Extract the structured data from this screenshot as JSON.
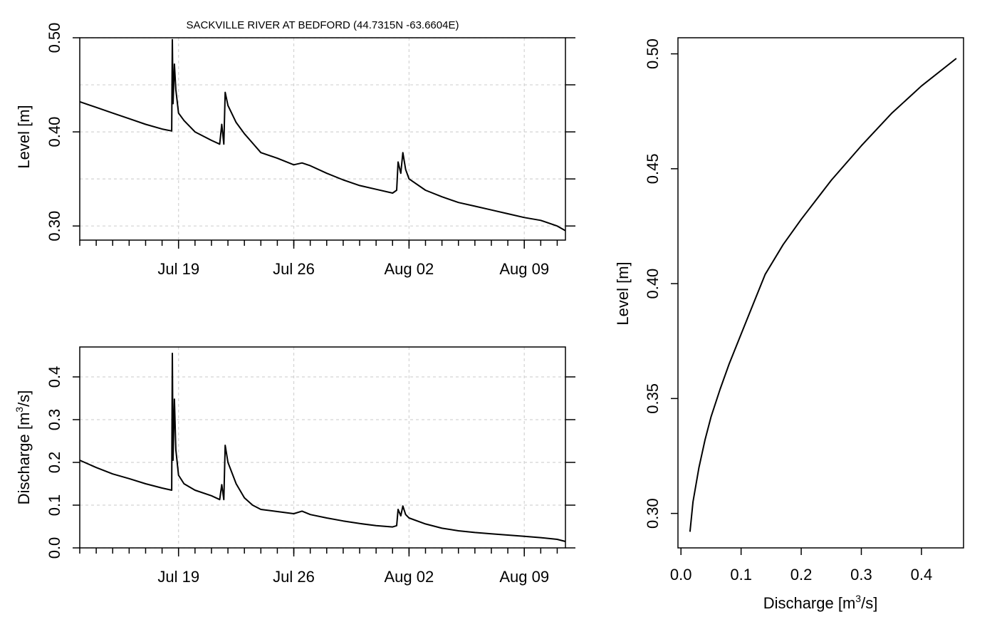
{
  "chart_data": [
    {
      "type": "line",
      "title": "SACKVILLE RIVER AT BEDFORD (44.7315N -63.6604E)",
      "ylabel": "Level [m]",
      "x_is_date": true,
      "xlim": [
        "2019-07-13T00:00",
        "2019-08-11T12:00"
      ],
      "ylim": [
        0.285,
        0.5
      ],
      "x_tick_labels": [
        "Jul 19",
        "Jul 26",
        "Aug 02",
        "Aug 09"
      ],
      "x_tick_dates": [
        "2019-07-19",
        "2019-07-26",
        "2019-08-02",
        "2019-08-09"
      ],
      "y_ticks": [
        0.3,
        0.4,
        0.5
      ],
      "y_tick_labels": [
        "0.30",
        "0.40",
        "0.50"
      ],
      "grid": true,
      "series": [
        {
          "x": [
            "2019-07-13T00:00",
            "2019-07-14T00:00",
            "2019-07-15T00:00",
            "2019-07-16T00:00",
            "2019-07-17T00:00",
            "2019-07-18T00:00",
            "2019-07-18T14:00",
            "2019-07-18T15:00",
            "2019-07-18T16:00",
            "2019-07-18T18:00",
            "2019-07-18T20:00",
            "2019-07-19T00:00",
            "2019-07-19T08:00",
            "2019-07-20T00:00",
            "2019-07-21T00:00",
            "2019-07-21T12:00",
            "2019-07-21T15:00",
            "2019-07-21T18:00",
            "2019-07-21T20:00",
            "2019-07-22T00:00",
            "2019-07-22T12:00",
            "2019-07-23T00:00",
            "2019-07-23T12:00",
            "2019-07-24T00:00",
            "2019-07-25T00:00",
            "2019-07-26T00:00",
            "2019-07-26T12:00",
            "2019-07-27T00:00",
            "2019-07-28T00:00",
            "2019-07-29T00:00",
            "2019-07-30T00:00",
            "2019-07-31T00:00",
            "2019-08-01T00:00",
            "2019-08-01T06:00",
            "2019-08-01T08:00",
            "2019-08-01T12:00",
            "2019-08-01T15:00",
            "2019-08-01T19:00",
            "2019-08-02T00:00",
            "2019-08-03T00:00",
            "2019-08-04T00:00",
            "2019-08-05T00:00",
            "2019-08-06T00:00",
            "2019-08-07T00:00",
            "2019-08-08T00:00",
            "2019-08-09T00:00",
            "2019-08-10T00:00",
            "2019-08-11T00:00",
            "2019-08-11T12:00"
          ],
          "y": [
            0.432,
            0.426,
            0.42,
            0.414,
            0.408,
            0.403,
            0.401,
            0.498,
            0.43,
            0.472,
            0.445,
            0.42,
            0.412,
            0.4,
            0.391,
            0.387,
            0.408,
            0.387,
            0.442,
            0.428,
            0.41,
            0.398,
            0.388,
            0.378,
            0.372,
            0.365,
            0.367,
            0.364,
            0.356,
            0.349,
            0.343,
            0.339,
            0.335,
            0.338,
            0.368,
            0.356,
            0.378,
            0.36,
            0.35,
            0.338,
            0.331,
            0.325,
            0.321,
            0.317,
            0.313,
            0.309,
            0.306,
            0.3,
            0.295
          ]
        }
      ]
    },
    {
      "type": "line",
      "ylabel": "Discharge [m³/s]",
      "ylabel_main": "Discharge [m",
      "ylabel_sup": "3",
      "ylabel_end": "/s]",
      "x_is_date": true,
      "xlim": [
        "2019-07-13T00:00",
        "2019-08-11T12:00"
      ],
      "ylim": [
        0.0,
        0.47
      ],
      "x_tick_labels": [
        "Jul 19",
        "Jul 26",
        "Aug 02",
        "Aug 09"
      ],
      "x_tick_dates": [
        "2019-07-19",
        "2019-07-26",
        "2019-08-02",
        "2019-08-09"
      ],
      "y_ticks": [
        0.0,
        0.1,
        0.2,
        0.3,
        0.4
      ],
      "y_tick_labels": [
        "0.0",
        "0.1",
        "0.2",
        "0.3",
        "0.4"
      ],
      "grid": true,
      "series": [
        {
          "x": [
            "2019-07-13T00:00",
            "2019-07-14T00:00",
            "2019-07-15T00:00",
            "2019-07-16T00:00",
            "2019-07-17T00:00",
            "2019-07-18T00:00",
            "2019-07-18T14:00",
            "2019-07-18T15:00",
            "2019-07-18T16:00",
            "2019-07-18T18:00",
            "2019-07-18T20:00",
            "2019-07-19T00:00",
            "2019-07-19T08:00",
            "2019-07-20T00:00",
            "2019-07-21T00:00",
            "2019-07-21T12:00",
            "2019-07-21T15:00",
            "2019-07-21T18:00",
            "2019-07-21T20:00",
            "2019-07-22T00:00",
            "2019-07-22T12:00",
            "2019-07-23T00:00",
            "2019-07-23T12:00",
            "2019-07-24T00:00",
            "2019-07-25T00:00",
            "2019-07-26T00:00",
            "2019-07-26T12:00",
            "2019-07-27T00:00",
            "2019-07-28T00:00",
            "2019-07-29T00:00",
            "2019-07-30T00:00",
            "2019-07-31T00:00",
            "2019-08-01T00:00",
            "2019-08-01T06:00",
            "2019-08-01T08:00",
            "2019-08-01T12:00",
            "2019-08-01T15:00",
            "2019-08-01T19:00",
            "2019-08-02T00:00",
            "2019-08-03T00:00",
            "2019-08-04T00:00",
            "2019-08-05T00:00",
            "2019-08-06T00:00",
            "2019-08-07T00:00",
            "2019-08-08T00:00",
            "2019-08-09T00:00",
            "2019-08-10T00:00",
            "2019-08-11T00:00",
            "2019-08-11T12:00"
          ],
          "y": [
            0.205,
            0.188,
            0.173,
            0.162,
            0.15,
            0.14,
            0.135,
            0.455,
            0.205,
            0.348,
            0.23,
            0.17,
            0.15,
            0.135,
            0.122,
            0.113,
            0.148,
            0.113,
            0.24,
            0.2,
            0.15,
            0.117,
            0.1,
            0.09,
            0.085,
            0.08,
            0.086,
            0.078,
            0.07,
            0.063,
            0.057,
            0.052,
            0.049,
            0.052,
            0.09,
            0.075,
            0.098,
            0.078,
            0.07,
            0.056,
            0.046,
            0.04,
            0.036,
            0.033,
            0.03,
            0.027,
            0.024,
            0.02,
            0.015
          ]
        }
      ]
    },
    {
      "type": "line",
      "xlabel": "Discharge [m³/s]",
      "xlabel_main": "Discharge [m",
      "xlabel_sup": "3",
      "xlabel_end": "/s]",
      "ylabel": "Level [m]",
      "xlim": [
        -0.005,
        0.47
      ],
      "ylim": [
        0.285,
        0.507
      ],
      "x_ticks": [
        0.0,
        0.1,
        0.2,
        0.3,
        0.4
      ],
      "x_tick_labels": [
        "0.0",
        "0.1",
        "0.2",
        "0.3",
        "0.4"
      ],
      "y_ticks": [
        0.3,
        0.35,
        0.4,
        0.45,
        0.5
      ],
      "y_tick_labels": [
        "0.30",
        "0.35",
        "0.40",
        "0.45",
        "0.50"
      ],
      "grid": false,
      "series": [
        {
          "x": [
            0.015,
            0.02,
            0.03,
            0.04,
            0.05,
            0.065,
            0.08,
            0.1,
            0.12,
            0.14,
            0.17,
            0.2,
            0.25,
            0.3,
            0.35,
            0.4,
            0.458
          ],
          "y": [
            0.292,
            0.305,
            0.32,
            0.332,
            0.342,
            0.354,
            0.365,
            0.378,
            0.391,
            0.404,
            0.417,
            0.428,
            0.445,
            0.46,
            0.474,
            0.486,
            0.498
          ]
        }
      ]
    }
  ]
}
